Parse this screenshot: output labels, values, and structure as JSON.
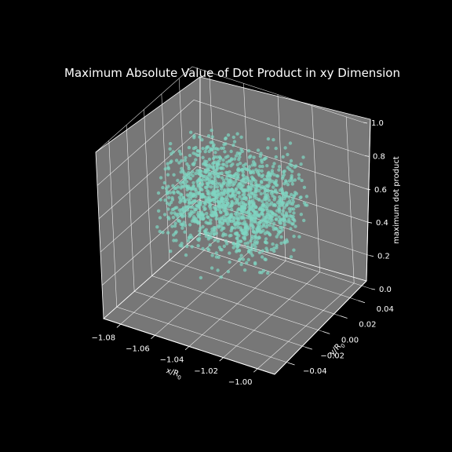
{
  "chart_data": {
    "type": "scatter",
    "projection": "3d",
    "title": "Maximum Absolute Value of Dot Product in xy Dimension",
    "xlabel": "x/R",
    "xlabel_sub": "0",
    "ylabel": "y/R",
    "ylabel_sub": "0",
    "zlabel": "maximum dot product",
    "xlim": [
      -1.09,
      -0.99
    ],
    "ylim": [
      -0.055,
      0.055
    ],
    "zlim": [
      0.0,
      1.0
    ],
    "x_ticks": [
      "−1.08",
      "−1.06",
      "−1.04",
      "−1.02",
      "−1.00"
    ],
    "y_ticks": [
      "−0.04",
      "−0.02",
      "0.00",
      "0.02",
      "0.04"
    ],
    "z_ticks": [
      "0.0",
      "0.2",
      "0.4",
      "0.6",
      "0.8",
      "1.0"
    ],
    "grid": true,
    "background": "#000000",
    "pane_color": "#777777",
    "point_color": "#7fd6c2",
    "point_count": 1400,
    "x_distribution": {
      "center": -1.04,
      "spread": 0.03
    },
    "y_distribution": {
      "center": 0.0,
      "spread": 0.03
    },
    "z_distribution": {
      "center": 0.62,
      "spread": 0.13,
      "min": 0.05,
      "max": 0.98
    }
  }
}
